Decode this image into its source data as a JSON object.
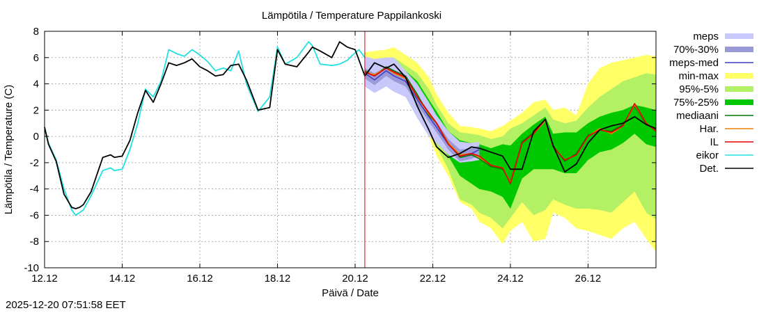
{
  "chart_data": {
    "type": "line",
    "title": "Lämpötila / Temperature   Pappilankoski",
    "xlabel": "Päivä / Date",
    "ylabel": "Lämpötila / Temperature (C)",
    "ylim": [
      -10,
      8
    ],
    "xlim_days": [
      0,
      15.75
    ],
    "x_tick_labels": [
      "12.12",
      "14.12",
      "16.12",
      "18.12",
      "20.12",
      "22.12",
      "24.12",
      "26.12"
    ],
    "y_tick_labels": [
      "-10",
      "-8",
      "-6",
      "-4",
      "-2",
      "0",
      "2",
      "4",
      "6",
      "8"
    ],
    "grid": true,
    "legend_position": "right",
    "forecast_start_day": 8.25,
    "x_unit": "days since 12.12 00:00",
    "legend": [
      {
        "label": "meps",
        "color": "#c8c8fa",
        "kind": "band"
      },
      {
        "label": "70%-30%",
        "color": "#9a9ad8",
        "kind": "band"
      },
      {
        "label": "meps-med",
        "color": "#4040c0",
        "kind": "line"
      },
      {
        "label": "min-max",
        "color": "#ffff66",
        "kind": "band"
      },
      {
        "label": "95%-5%",
        "color": "#b4f064",
        "kind": "band"
      },
      {
        "label": "75%-25%",
        "color": "#00c800",
        "kind": "band"
      },
      {
        "label": "mediaani",
        "color": "#007800",
        "kind": "line"
      },
      {
        "label": "Har.",
        "color": "#f08000",
        "kind": "line"
      },
      {
        "label": "IL",
        "color": "#e00000",
        "kind": "line"
      },
      {
        "label": "eikor",
        "color": "#20e0e0",
        "kind": "line"
      },
      {
        "label": "Det.",
        "color": "#000000",
        "kind": "line"
      }
    ],
    "series": [
      {
        "name": "eikor",
        "x": [
          0,
          0.1,
          0.3,
          0.5,
          0.7,
          0.8,
          0.9,
          1.0,
          1.2,
          1.5,
          1.7,
          1.8,
          2.0,
          2.2,
          2.4,
          2.6,
          2.8,
          3.0,
          3.2,
          3.4,
          3.6,
          3.8,
          4.0,
          4.2,
          4.4,
          4.6,
          4.8,
          5.0,
          5.2,
          5.5,
          5.8,
          6.0,
          6.2,
          6.5,
          6.8,
          6.9,
          7.1,
          7.4,
          7.6,
          7.8,
          7.9,
          8.1,
          8.25
        ],
        "y": [
          0.7,
          -0.5,
          -1.8,
          -4.0,
          -5.6,
          -6.0,
          -5.8,
          -5.6,
          -4.5,
          -2.6,
          -2.4,
          -2.6,
          -2.5,
          -1.0,
          1.0,
          3.6,
          3.0,
          4.2,
          6.6,
          6.3,
          6.1,
          6.6,
          6.2,
          5.7,
          5.0,
          5.2,
          5.0,
          6.5,
          4.0,
          1.9,
          3.0,
          6.8,
          5.5,
          6.0,
          7.2,
          6.9,
          5.5,
          5.4,
          5.5,
          5.8,
          6.1,
          6.6,
          6.0
        ]
      },
      {
        "name": "Det.",
        "x": [
          0,
          0.1,
          0.3,
          0.5,
          0.7,
          0.8,
          0.9,
          1.0,
          1.2,
          1.5,
          1.7,
          1.8,
          2.0,
          2.2,
          2.4,
          2.6,
          2.8,
          3.0,
          3.2,
          3.4,
          3.6,
          3.8,
          4.0,
          4.2,
          4.4,
          4.6,
          4.8,
          5.0,
          5.2,
          5.5,
          5.8,
          6.0,
          6.2,
          6.5,
          6.8,
          6.9,
          7.1,
          7.4,
          7.6,
          7.8,
          8.0,
          8.25,
          8.5,
          8.8,
          9.0,
          9.3,
          9.6,
          9.9,
          10.1,
          10.4,
          10.7,
          11.0,
          11.2,
          11.5,
          11.8,
          12.0,
          12.3,
          12.6,
          12.9,
          13.1,
          13.4,
          13.7,
          14.0,
          14.3,
          14.6,
          14.9,
          15.2,
          15.5,
          15.75
        ],
        "y": [
          0.7,
          -0.6,
          -1.9,
          -4.4,
          -5.4,
          -5.5,
          -5.4,
          -5.2,
          -4.2,
          -1.6,
          -1.4,
          -1.6,
          -1.5,
          -0.3,
          1.8,
          3.5,
          2.6,
          4.0,
          5.6,
          5.4,
          5.6,
          5.9,
          5.3,
          5.0,
          4.6,
          4.7,
          5.4,
          5.5,
          4.3,
          2.0,
          2.2,
          6.6,
          5.5,
          5.3,
          6.4,
          6.8,
          6.5,
          6.0,
          7.2,
          6.8,
          6.6,
          4.6,
          5.6,
          5.2,
          5.5,
          4.5,
          2.3,
          0.5,
          -0.8,
          -1.6,
          -1.3,
          -0.8,
          -0.9,
          -1.2,
          -1.5,
          -2.5,
          -2.5,
          0.4,
          1.3,
          -0.7,
          -2.7,
          -2.1,
          -0.5,
          0.5,
          0.8,
          1.0,
          1.5,
          0.9,
          0.6
        ]
      },
      {
        "name": "IL",
        "x": [
          8.25,
          8.5,
          8.8,
          9.0,
          9.3,
          9.6,
          9.9,
          10.1,
          10.4,
          10.7,
          11.0,
          11.2,
          11.5,
          11.8,
          12.0,
          12.3,
          12.6,
          12.9,
          13.1,
          13.4,
          13.7,
          14.0,
          14.3,
          14.6,
          14.9,
          15.2,
          15.5,
          15.75
        ],
        "y": [
          4.9,
          4.6,
          5.2,
          4.9,
          4.5,
          3.0,
          1.8,
          1.0,
          -0.6,
          -1.5,
          -1.3,
          -1.5,
          -2.2,
          -2.4,
          -3.6,
          -0.5,
          0.2,
          1.3,
          -0.8,
          -1.8,
          -1.4,
          0.0,
          0.5,
          0.3,
          0.8,
          2.5,
          1.0,
          0.4
        ]
      },
      {
        "name": "Har.",
        "x": [
          8.25,
          8.5,
          8.8,
          9.0,
          9.3,
          9.6,
          9.9,
          10.1,
          10.4,
          10.7,
          11.0,
          11.2,
          11.5,
          11.8,
          12.0,
          12.3,
          12.6,
          12.9,
          13.1,
          13.4,
          13.7,
          14.0,
          14.3,
          14.6,
          14.9,
          15.2,
          15.5,
          15.75
        ],
        "y": [
          4.9,
          4.7,
          5.2,
          4.8,
          4.4,
          3.0,
          1.7,
          1.0,
          -0.5,
          -1.4,
          -1.3,
          -1.6,
          -2.2,
          -2.4,
          -3.5,
          -0.5,
          0.2,
          1.2,
          -0.8,
          -1.8,
          -1.4,
          0.0,
          0.6,
          0.2,
          0.8,
          2.4,
          1.0,
          0.4
        ]
      },
      {
        "name": "mediaani",
        "x": [
          8.25,
          8.5,
          8.8,
          9.0,
          9.3,
          9.6,
          9.9,
          10.1,
          10.4,
          10.7,
          11.0,
          11.2,
          11.5,
          11.8,
          12.0,
          12.3,
          12.6,
          12.9,
          13.1,
          13.4,
          13.7,
          14.0,
          14.3,
          14.6,
          14.9,
          15.2,
          15.5,
          15.75
        ],
        "y": [
          5.0,
          4.6,
          5.3,
          5.0,
          4.6,
          3.2,
          1.6,
          1.0,
          -0.5,
          -1.6,
          -1.4,
          -1.7,
          -2.3,
          -2.5,
          -3.4,
          -0.4,
          0.3,
          1.3,
          -0.7,
          -1.9,
          -1.3,
          0.1,
          0.5,
          0.4,
          0.9,
          2.3,
          0.9,
          0.5
        ]
      },
      {
        "name": "meps-med",
        "x": [
          8.25,
          8.5,
          8.8,
          9.0,
          9.3,
          9.6,
          9.9,
          10.1,
          10.4,
          10.7,
          11.0,
          11.2
        ],
        "y": [
          4.8,
          4.3,
          5.0,
          4.6,
          4.2,
          2.8,
          1.5,
          0.7,
          -0.6,
          -1.5,
          -1.3,
          -1.0
        ]
      }
    ],
    "bands": [
      {
        "name": "min-max",
        "x": [
          8.25,
          8.5,
          8.8,
          9.0,
          9.3,
          9.6,
          9.9,
          10.1,
          10.4,
          10.7,
          11.0,
          11.2,
          11.5,
          11.8,
          12.0,
          12.3,
          12.6,
          12.9,
          13.1,
          13.4,
          13.7,
          14.0,
          14.3,
          14.6,
          14.9,
          15.2,
          15.5,
          15.75
        ],
        "upper": [
          6.4,
          6.5,
          6.6,
          6.8,
          6.2,
          5.6,
          4.5,
          3.2,
          1.8,
          0.8,
          0.7,
          0.6,
          0.4,
          0.8,
          1.2,
          1.8,
          2.6,
          2.8,
          2.0,
          2.2,
          1.6,
          4.0,
          5.2,
          5.6,
          5.8,
          6.0,
          6.2,
          6.1
        ],
        "lower": [
          4.0,
          3.6,
          4.2,
          3.8,
          3.0,
          1.4,
          0.0,
          -1.5,
          -3.0,
          -5.0,
          -5.5,
          -6.5,
          -7.0,
          -8.2,
          -7.2,
          -6.5,
          -8.0,
          -7.8,
          -5.8,
          -6.2,
          -7.0,
          -7.2,
          -7.5,
          -7.8,
          -7.0,
          -6.5,
          -7.8,
          -8.8
        ]
      },
      {
        "name": "95%-5%",
        "x": [
          8.25,
          8.5,
          8.8,
          9.0,
          9.3,
          9.6,
          9.9,
          10.1,
          10.4,
          10.7,
          11.0,
          11.2,
          11.5,
          11.8,
          12.0,
          12.3,
          12.6,
          12.9,
          13.1,
          13.4,
          13.7,
          14.0,
          14.3,
          14.6,
          14.9,
          15.2,
          15.5,
          15.75
        ],
        "upper": [
          6.0,
          5.8,
          6.0,
          6.0,
          5.4,
          4.8,
          3.6,
          2.4,
          1.0,
          0.3,
          0.2,
          0.1,
          -0.2,
          0.0,
          0.6,
          1.0,
          1.6,
          2.2,
          1.3,
          1.0,
          1.2,
          2.2,
          3.0,
          3.6,
          4.2,
          4.5,
          4.8,
          4.7
        ],
        "lower": [
          4.2,
          3.8,
          4.4,
          4.0,
          3.3,
          1.8,
          0.4,
          -0.8,
          -2.5,
          -4.8,
          -5.2,
          -5.8,
          -6.2,
          -7.0,
          -6.2,
          -5.0,
          -6.0,
          -5.6,
          -4.8,
          -5.2,
          -5.5,
          -5.5,
          -5.6,
          -5.8,
          -5.0,
          -4.2,
          -5.8,
          -6.3
        ]
      },
      {
        "name": "75%-25%",
        "x": [
          8.25,
          8.5,
          8.8,
          9.0,
          9.3,
          9.6,
          9.9,
          10.1,
          10.4,
          10.7,
          11.0,
          11.2,
          11.5,
          11.8,
          12.0,
          12.3,
          12.6,
          12.9,
          13.1,
          13.4,
          13.7,
          14.0,
          14.3,
          14.6,
          14.9,
          15.2,
          15.5,
          15.75
        ],
        "upper": [
          5.4,
          5.2,
          5.6,
          5.5,
          5.0,
          4.2,
          2.8,
          1.9,
          0.4,
          -0.3,
          -0.5,
          -0.6,
          -0.9,
          -0.6,
          -0.7,
          0.2,
          0.9,
          1.5,
          0.2,
          0.3,
          0.3,
          1.0,
          1.5,
          1.8,
          2.0,
          2.4,
          2.2,
          2.0
        ],
        "lower": [
          4.6,
          4.2,
          4.8,
          4.4,
          3.8,
          2.2,
          0.8,
          0.0,
          -1.5,
          -3.0,
          -3.6,
          -4.0,
          -4.2,
          -4.6,
          -5.5,
          -3.2,
          -2.5,
          -2.5,
          -2.5,
          -2.8,
          -2.8,
          -1.8,
          -1.2,
          -1.0,
          -0.5,
          0.2,
          -0.6,
          -0.8
        ]
      },
      {
        "name": "meps",
        "x": [
          8.25,
          8.5,
          8.8,
          9.0,
          9.3,
          9.6,
          9.9,
          10.1,
          10.4,
          10.7,
          11.0,
          11.2
        ],
        "upper": [
          6.1,
          5.9,
          6.0,
          6.0,
          5.0,
          4.0,
          2.6,
          1.6,
          0.4,
          -0.4,
          -0.5,
          -0.4
        ],
        "lower": [
          3.8,
          3.3,
          3.8,
          3.4,
          3.0,
          1.4,
          0.0,
          -0.5,
          -1.4,
          -2.0,
          -1.9,
          -1.8
        ]
      },
      {
        "name": "70%-30%",
        "x": [
          8.25,
          8.5,
          8.8,
          9.0,
          9.3,
          9.6,
          9.9,
          10.1,
          10.4,
          10.7,
          11.0,
          11.2
        ],
        "upper": [
          5.2,
          4.8,
          5.3,
          5.0,
          4.5,
          3.2,
          1.9,
          1.1,
          -0.2,
          -1.0,
          -0.9,
          -0.7
        ],
        "lower": [
          4.4,
          3.9,
          4.6,
          4.2,
          3.8,
          2.4,
          1.1,
          0.3,
          -1.0,
          -1.9,
          -1.7,
          -1.4
        ]
      }
    ]
  },
  "footer": {
    "timestamp": "2025-12-20 07:51:58 EET"
  }
}
